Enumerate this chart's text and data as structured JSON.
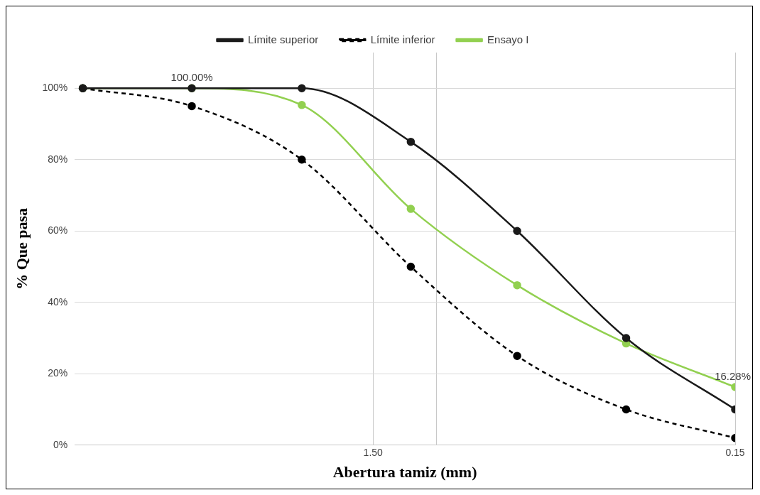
{
  "chart_data": {
    "type": "line",
    "xlabel": "Abertura tamiz (mm)",
    "ylabel": "% Que pasa",
    "x": [
      9.5,
      4.75,
      2.36,
      1.18,
      0.6,
      0.3,
      0.15
    ],
    "log": "x",
    "xlim": [
      10,
      0.15
    ],
    "xticks": [
      {
        "value": 1.5,
        "label": "1.50"
      },
      {
        "value": 1,
        "label": null
      },
      {
        "value": 0.15,
        "label": "0.15"
      }
    ],
    "ylim": [
      0,
      110
    ],
    "yticks": [
      {
        "value": 0,
        "label": "0%"
      },
      {
        "value": 20,
        "label": "20%"
      },
      {
        "value": 40,
        "label": "40%"
      },
      {
        "value": 60,
        "label": "60%"
      },
      {
        "value": 80,
        "label": "80%"
      },
      {
        "value": 100,
        "label": "100%"
      }
    ],
    "series": [
      {
        "name": "Límite superior",
        "color": "#1a1a1a",
        "line_style": "solid",
        "values": [
          100,
          100,
          100,
          85,
          60,
          30,
          10
        ]
      },
      {
        "name": "Límite inferior",
        "color": "#000000",
        "line_style": "dashed",
        "values": [
          100,
          95,
          80,
          50,
          25,
          10,
          2
        ]
      },
      {
        "name": "Ensayo I",
        "color": "#92d050",
        "line_style": "solid",
        "values": [
          100,
          100,
          95.3,
          66.2,
          44.8,
          28.5,
          16.28
        ],
        "value_labels": [
          null,
          "100.00%",
          null,
          null,
          null,
          null,
          "16.28%"
        ]
      }
    ],
    "grid": true,
    "legend": "top",
    "marker": "circle"
  }
}
